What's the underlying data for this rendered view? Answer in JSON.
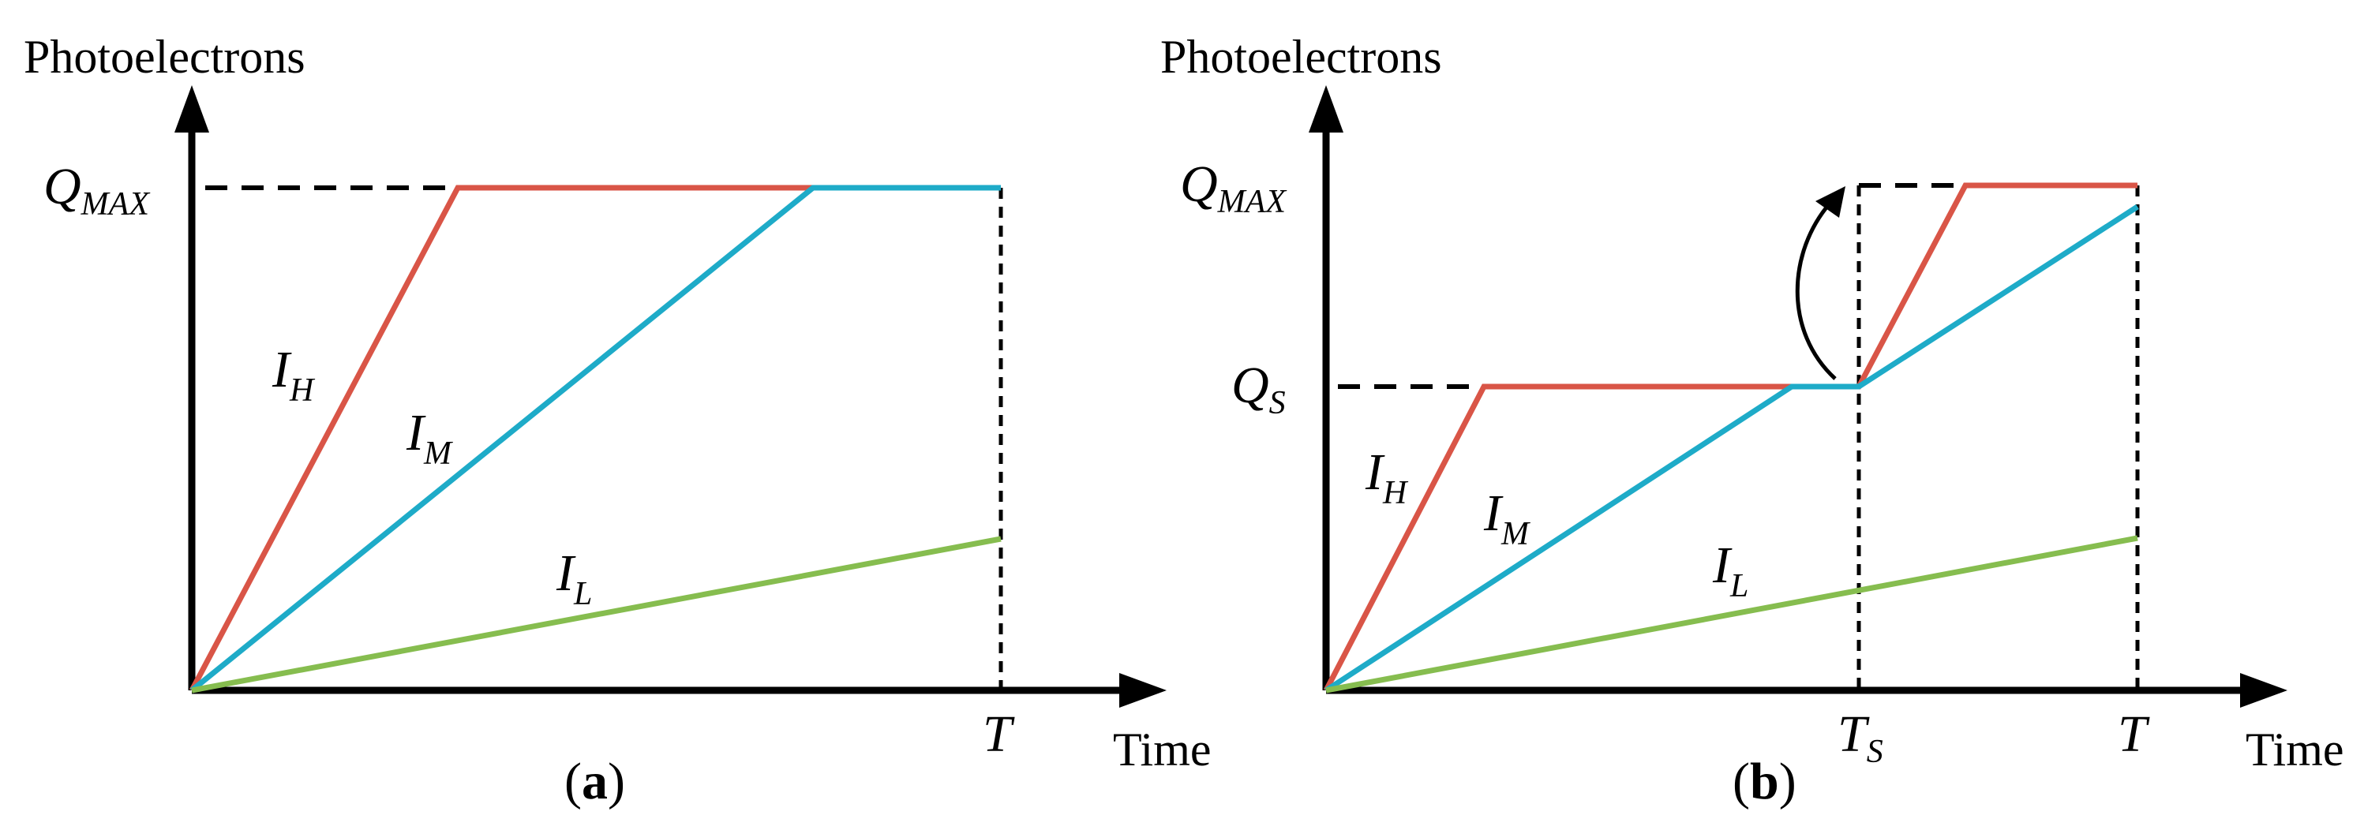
{
  "colors": {
    "high": "#d95547",
    "medium": "#1eabc8",
    "low": "#86bd4f",
    "axis": "#000000"
  },
  "panel_a": {
    "y_axis_label": "Photoelectrons",
    "x_axis_label": "Time",
    "q_max": {
      "base": "Q",
      "sub": "MAX"
    },
    "t": "T",
    "curves": [
      {
        "base": "I",
        "sub": "H"
      },
      {
        "base": "I",
        "sub": "M"
      },
      {
        "base": "I",
        "sub": "L"
      }
    ],
    "tag": {
      "open": "(",
      "letter": "a",
      "close": ")"
    }
  },
  "panel_b": {
    "y_axis_label": "Photoelectrons",
    "x_axis_label": "Time",
    "q_max": {
      "base": "Q",
      "sub": "MAX"
    },
    "q_s": {
      "base": "Q",
      "sub": "S"
    },
    "t_s": {
      "base": "T",
      "sub": "S"
    },
    "t": "T",
    "curves": [
      {
        "base": "I",
        "sub": "H"
      },
      {
        "base": "I",
        "sub": "M"
      },
      {
        "base": "I",
        "sub": "L"
      }
    ],
    "tag": {
      "open": "(",
      "letter": "b",
      "close": ")"
    }
  }
}
